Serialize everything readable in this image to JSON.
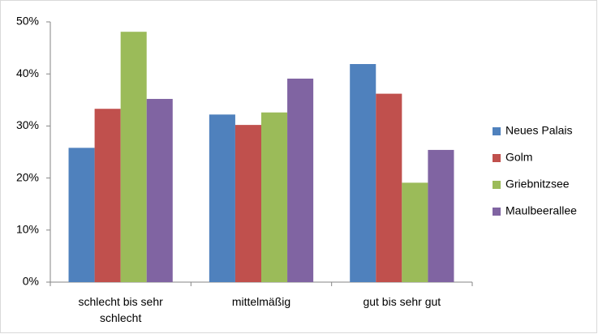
{
  "chart_data": {
    "type": "bar",
    "categories": [
      "schlecht bis sehr schlecht",
      "mittelmäßig",
      "gut bis sehr gut"
    ],
    "series": [
      {
        "name": "Neues Palais",
        "color": "#4f81bd",
        "values": [
          25.8,
          32.2,
          41.9
        ]
      },
      {
        "name": "Golm",
        "color": "#c0504d",
        "values": [
          33.3,
          30.2,
          36.2
        ]
      },
      {
        "name": "Griebnitzsee",
        "color": "#9bbb59",
        "values": [
          48.1,
          32.6,
          19.1
        ]
      },
      {
        "name": "Maulbeerallee",
        "color": "#8064a2",
        "values": [
          35.2,
          39.1,
          25.4
        ]
      }
    ],
    "ylim": [
      0,
      50
    ],
    "yticks": [
      {
        "value": 0,
        "label": "0%"
      },
      {
        "value": 10,
        "label": "10%"
      },
      {
        "value": 20,
        "label": "20%"
      },
      {
        "value": 30,
        "label": "30%"
      },
      {
        "value": 40,
        "label": "40%"
      },
      {
        "value": 50,
        "label": "50%"
      }
    ],
    "grid": false,
    "legend": "right"
  }
}
